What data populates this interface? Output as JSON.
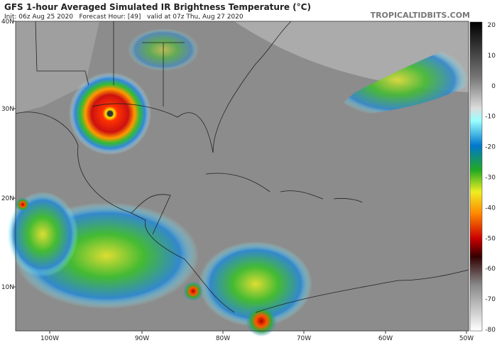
{
  "header": {
    "title": "GFS 1-hour Averaged Simulated IR Brightness Temperature (°C)",
    "subtitle": "Init: 06z Aug 25 2020   Forecast Hour: [49]   valid at 07z Thu, Aug 27 2020",
    "site": "TROPICALTIDBITS.COM"
  },
  "axes": {
    "lat_labels": [
      "40N",
      "30N",
      "20N",
      "10N"
    ],
    "lon_labels": [
      "100W",
      "90W",
      "80W",
      "70W",
      "60W",
      "50W"
    ]
  },
  "colorbar": {
    "ticks": [
      "20",
      "10",
      "0",
      "-10",
      "-20",
      "-30",
      "-40",
      "-50",
      "-60",
      "-70",
      "-80"
    ]
  }
}
